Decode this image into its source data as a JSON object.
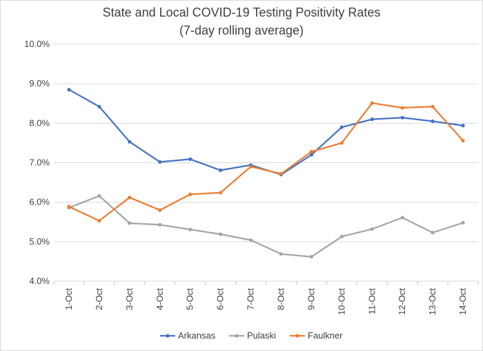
{
  "chart_data": {
    "type": "line",
    "title": "State and Local COVID-19 Testing Positivity Rates",
    "subtitle": "(7-day rolling average)",
    "categories": [
      "1-Oct",
      "2-Oct",
      "3-Oct",
      "4-Oct",
      "5-Oct",
      "6-Oct",
      "7-Oct",
      "8-Oct",
      "9-Oct",
      "10-Oct",
      "11-Oct",
      "12-Oct",
      "13-Oct",
      "14-Oct"
    ],
    "ylim": [
      0.04,
      0.1
    ],
    "yticks": [
      0.04,
      0.05,
      0.06,
      0.07,
      0.08,
      0.09,
      0.1
    ],
    "ytick_labels": [
      "4.0%",
      "5.0%",
      "6.0%",
      "7.0%",
      "8.0%",
      "9.0%",
      "10.0%"
    ],
    "grid": true,
    "legend_position": "bottom",
    "xlabel": "",
    "ylabel": "",
    "series": [
      {
        "name": "Arkansas",
        "color": "#4472c4",
        "values": [
          0.0885,
          0.0842,
          0.0753,
          0.0702,
          0.0709,
          0.0681,
          0.0694,
          0.067,
          0.072,
          0.079,
          0.081,
          0.0814,
          0.0805,
          0.0794
        ]
      },
      {
        "name": "Pulaski",
        "color": "#a5a5a5",
        "values": [
          0.0586,
          0.0616,
          0.0547,
          0.0543,
          0.0531,
          0.0519,
          0.0504,
          0.0469,
          0.0462,
          0.0513,
          0.0532,
          0.0561,
          0.0523,
          0.0548
        ]
      },
      {
        "name": "Faulkner",
        "color": "#ed7d31",
        "values": [
          0.0589,
          0.0553,
          0.0612,
          0.058,
          0.062,
          0.0624,
          0.069,
          0.0672,
          0.0728,
          0.075,
          0.0851,
          0.0839,
          0.0842,
          0.0756
        ]
      }
    ]
  }
}
